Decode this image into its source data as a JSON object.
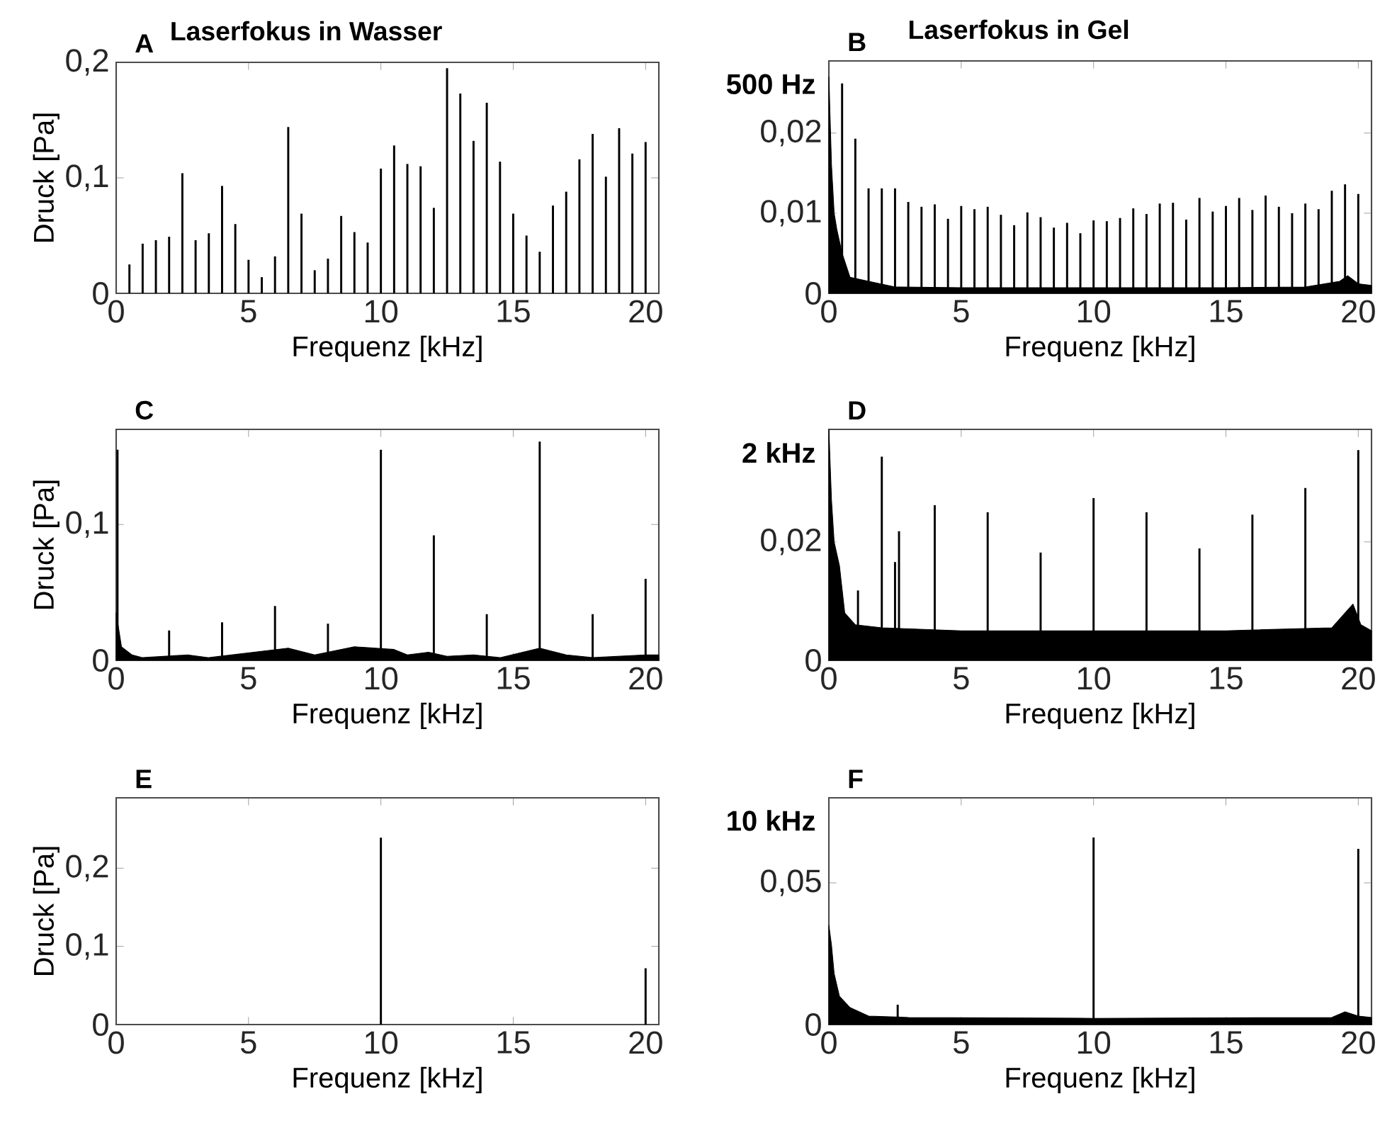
{
  "chart_data": [
    {
      "type": "bar",
      "title": "Laserfokus in Wasser",
      "annotations": [
        "A"
      ],
      "xlabel": "Frequenz [kHz]",
      "ylabel": "Druck [Pa]",
      "xlim": [
        0,
        20.5
      ],
      "ylim": [
        0,
        0.2
      ],
      "xticks": [
        0,
        5,
        10,
        15,
        20
      ],
      "yticks": [
        0,
        {
          "value": 0.1,
          "label": "0,1"
        },
        {
          "value": 0.2,
          "label": "0,2"
        }
      ],
      "series": [
        {
          "type": "bar",
          "color": "#000000",
          "x": [
            0.5,
            1,
            1.5,
            2,
            2.5,
            3,
            3.5,
            4,
            4.5,
            5,
            5.5,
            6,
            6.5,
            7,
            7.5,
            8,
            8.5,
            9,
            9.5,
            10,
            10.5,
            11,
            11.5,
            12,
            12.5,
            13,
            13.5,
            14,
            14.5,
            15,
            15.5,
            16,
            16.5,
            17,
            17.5,
            18,
            18.5,
            19,
            19.5,
            20
          ],
          "values": [
            0.025,
            0.043,
            0.046,
            0.049,
            0.104,
            0.046,
            0.052,
            0.093,
            0.06,
            0.029,
            0.014,
            0.032,
            0.144,
            0.069,
            0.02,
            0.03,
            0.067,
            0.053,
            0.044,
            0.108,
            0.128,
            0.112,
            0.11,
            0.074,
            0.195,
            0.173,
            0.132,
            0.165,
            0.114,
            0.069,
            0.05,
            0.036,
            0.076,
            0.088,
            0.116,
            0.138,
            0.101,
            0.143,
            0.121,
            0.131
          ]
        }
      ]
    },
    {
      "type": "bar",
      "title": "Laserfokus in Gel",
      "annotations": [
        "B",
        "500 Hz"
      ],
      "xlabel": "Frequenz [kHz]",
      "xlim": [
        0,
        20.5
      ],
      "ylim": [
        0,
        0.029
      ],
      "xticks": [
        0,
        5,
        10,
        15,
        20
      ],
      "yticks": [
        0,
        {
          "value": 0.01,
          "label": "0,01"
        },
        {
          "value": 0.02,
          "label": "0,02"
        }
      ],
      "series": [
        {
          "type": "area",
          "color": "#000000",
          "x": [
            0,
            0.1,
            0.2,
            0.3,
            0.5,
            0.8,
            1.5,
            2.5,
            5,
            10,
            15,
            18,
            19.3,
            19.6,
            20,
            20.5
          ],
          "values": [
            0.027,
            0.016,
            0.01,
            0.008,
            0.005,
            0.002,
            0.0015,
            0.0008,
            0.0007,
            0.0007,
            0.0007,
            0.0008,
            0.0015,
            0.0022,
            0.0012,
            0.001
          ]
        },
        {
          "type": "bar",
          "color": "#000000",
          "x": [
            0.5,
            1,
            1.5,
            2,
            2.5,
            3,
            3.5,
            4,
            4.5,
            5,
            5.5,
            6,
            6.5,
            7,
            7.5,
            8,
            8.5,
            9,
            9.5,
            10,
            10.5,
            11,
            11.5,
            12,
            12.5,
            13,
            13.5,
            14,
            14.5,
            15,
            15.5,
            16,
            16.5,
            17,
            17.5,
            18,
            18.5,
            19,
            19.5,
            20
          ],
          "values": [
            0.0262,
            0.0193,
            0.0131,
            0.0131,
            0.0131,
            0.0114,
            0.0108,
            0.0111,
            0.0093,
            0.0109,
            0.0105,
            0.0108,
            0.0098,
            0.0085,
            0.0101,
            0.0095,
            0.0082,
            0.0088,
            0.0075,
            0.0091,
            0.009,
            0.0094,
            0.0106,
            0.0099,
            0.0112,
            0.0113,
            0.0092,
            0.0119,
            0.0102,
            0.0109,
            0.0119,
            0.0104,
            0.0122,
            0.0108,
            0.01,
            0.0112,
            0.0105,
            0.0128,
            0.0136,
            0.0124
          ]
        }
      ]
    },
    {
      "type": "bar",
      "annotations": [
        "C"
      ],
      "xlabel": "Frequenz [kHz]",
      "ylabel": "Druck [Pa]",
      "xlim": [
        0,
        20.5
      ],
      "ylim": [
        0,
        0.17
      ],
      "xticks": [
        0,
        5,
        10,
        15,
        20
      ],
      "yticks": [
        0,
        {
          "value": 0.1,
          "label": "0,1"
        }
      ],
      "series": [
        {
          "type": "area",
          "color": "#000000",
          "x": [
            0,
            0.2,
            0.6,
            1,
            2.7,
            3.5,
            6.5,
            7.5,
            9,
            10.5,
            11,
            11.8,
            12.5,
            13.5,
            14.5,
            16,
            17,
            18,
            20,
            20.5
          ],
          "values": [
            0.035,
            0.01,
            0.004,
            0.002,
            0.004,
            0.002,
            0.009,
            0.004,
            0.01,
            0.008,
            0.004,
            0.006,
            0.003,
            0.004,
            0.002,
            0.009,
            0.004,
            0.002,
            0.004,
            0.004
          ]
        },
        {
          "type": "bar",
          "color": "#000000",
          "x": [
            0.05,
            2,
            4,
            6,
            8,
            10,
            12,
            14,
            16,
            18,
            20
          ],
          "values": [
            0.155,
            0.022,
            0.028,
            0.04,
            0.027,
            0.155,
            0.092,
            0.034,
            0.161,
            0.034,
            0.06
          ]
        }
      ]
    },
    {
      "type": "bar",
      "annotations": [
        "D",
        "2 kHz"
      ],
      "xlabel": "Frequenz [kHz]",
      "xlim": [
        0,
        20.5
      ],
      "ylim": [
        0,
        0.039
      ],
      "xticks": [
        0,
        5,
        10,
        15,
        20
      ],
      "yticks": [
        0,
        {
          "value": 0.02,
          "label": "0,02"
        }
      ],
      "series": [
        {
          "type": "area",
          "color": "#000000",
          "x": [
            0,
            0.1,
            0.2,
            0.4,
            0.6,
            1,
            2,
            5,
            10,
            15,
            19,
            19.5,
            19.8,
            20.1,
            20.5
          ],
          "values": [
            0.039,
            0.027,
            0.02,
            0.016,
            0.008,
            0.006,
            0.0055,
            0.005,
            0.005,
            0.005,
            0.0055,
            0.008,
            0.0095,
            0.006,
            0.005
          ]
        },
        {
          "type": "bar",
          "color": "#000000",
          "x": [
            1.1,
            2,
            2.5,
            2.65,
            4,
            6,
            8,
            10,
            12,
            14,
            16,
            18,
            20
          ],
          "values": [
            0.0118,
            0.0344,
            0.0166,
            0.0218,
            0.0262,
            0.025,
            0.0182,
            0.0274,
            0.025,
            0.0189,
            0.0246,
            0.0291,
            0.0355
          ]
        }
      ]
    },
    {
      "type": "bar",
      "annotations": [
        "E"
      ],
      "xlabel": "Frequenz [kHz]",
      "ylabel": "Druck [Pa]",
      "xlim": [
        0,
        20.5
      ],
      "ylim": [
        0,
        0.29
      ],
      "xticks": [
        0,
        5,
        10,
        15,
        20
      ],
      "yticks": [
        0,
        {
          "value": 0.1,
          "label": "0,1"
        },
        {
          "value": 0.2,
          "label": "0,2"
        }
      ],
      "series": [
        {
          "color": "#000000",
          "x": [
            10,
            20
          ],
          "values": [
            0.239,
            0.072
          ]
        }
      ]
    },
    {
      "type": "bar",
      "annotations": [
        "F",
        "10 kHz"
      ],
      "xlabel": "Frequenz [kHz]",
      "xlim": [
        0,
        20.5
      ],
      "ylim": [
        0,
        0.08
      ],
      "xticks": [
        0,
        5,
        10,
        15,
        20
      ],
      "yticks": [
        0,
        {
          "value": 0.05,
          "label": "0,05"
        }
      ],
      "series": [
        {
          "type": "area",
          "color": "#000000",
          "x": [
            0,
            0.1,
            0.2,
            0.4,
            0.8,
            1.5,
            3,
            10,
            19,
            19.5,
            20,
            20.5
          ],
          "values": [
            0.035,
            0.028,
            0.018,
            0.01,
            0.006,
            0.003,
            0.0025,
            0.0022,
            0.0025,
            0.0045,
            0.003,
            0.0025
          ]
        },
        {
          "type": "bar",
          "color": "#000000",
          "x": [
            2.6,
            10,
            20
          ],
          "values": [
            0.007,
            0.066,
            0.062
          ]
        }
      ]
    }
  ]
}
